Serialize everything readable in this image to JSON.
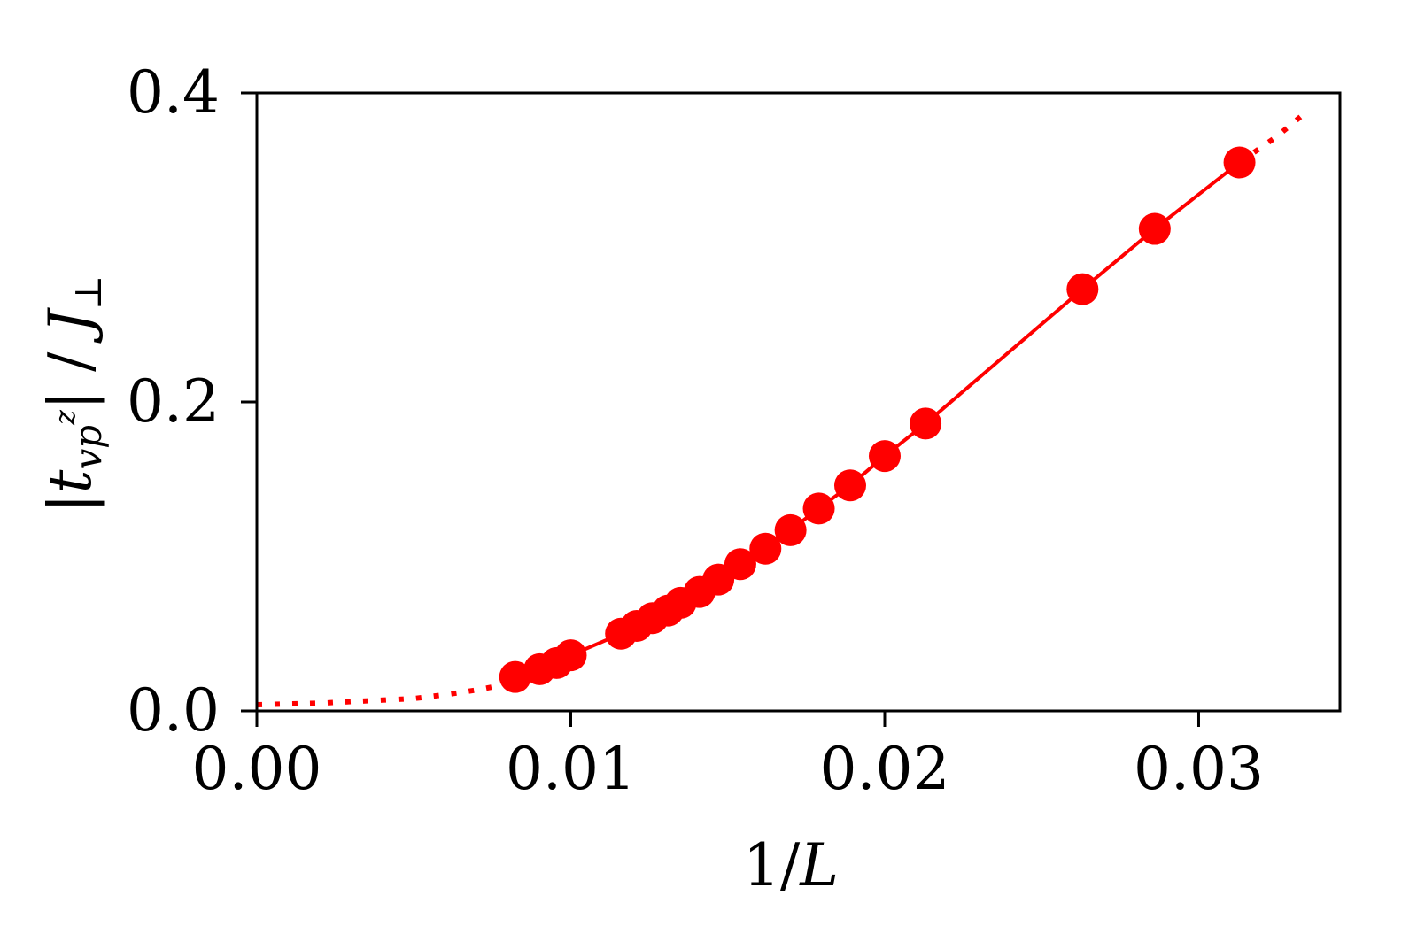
{
  "chart_data": {
    "type": "line",
    "xlabel": "1/L",
    "ylabel": "|t_vp^z| / J_⊥",
    "xlim": [
      0.0,
      0.0345
    ],
    "ylim": [
      0.0,
      0.4
    ],
    "x_ticks": [
      {
        "value": 0.0,
        "label": "0.00"
      },
      {
        "value": 0.01,
        "label": "0.01"
      },
      {
        "value": 0.02,
        "label": "0.02"
      },
      {
        "value": 0.03,
        "label": "0.03"
      }
    ],
    "y_ticks": [
      {
        "value": 0.0,
        "label": "0.0"
      },
      {
        "value": 0.2,
        "label": "0.2"
      },
      {
        "value": 0.4,
        "label": "0.4"
      }
    ],
    "color": "#ff0000",
    "series": [
      {
        "style": "markers-solid-line",
        "x": [
          0.00823,
          0.00901,
          0.00955,
          0.01,
          0.0116,
          0.0121,
          0.0126,
          0.0131,
          0.0135,
          0.0141,
          0.0147,
          0.0154,
          0.0162,
          0.017,
          0.0179,
          0.0189,
          0.02,
          0.0213,
          0.0263,
          0.0286,
          0.0313
        ],
        "y": [
          0.022,
          0.027,
          0.031,
          0.036,
          0.05,
          0.055,
          0.06,
          0.065,
          0.07,
          0.077,
          0.085,
          0.095,
          0.105,
          0.117,
          0.131,
          0.146,
          0.165,
          0.186,
          0.273,
          0.312,
          0.355
        ]
      },
      {
        "style": "dotted-extrapolation-low",
        "x": [
          0.0,
          0.001,
          0.002,
          0.003,
          0.004,
          0.005,
          0.006,
          0.007,
          0.0075,
          0.008,
          0.00823
        ],
        "y": [
          0.004,
          0.0045,
          0.005,
          0.006,
          0.007,
          0.008,
          0.0105,
          0.0135,
          0.0155,
          0.018,
          0.022
        ]
      },
      {
        "style": "dotted-extrapolation-high",
        "x": [
          0.0313,
          0.0325,
          0.0335
        ],
        "y": [
          0.355,
          0.372,
          0.389
        ]
      }
    ]
  }
}
